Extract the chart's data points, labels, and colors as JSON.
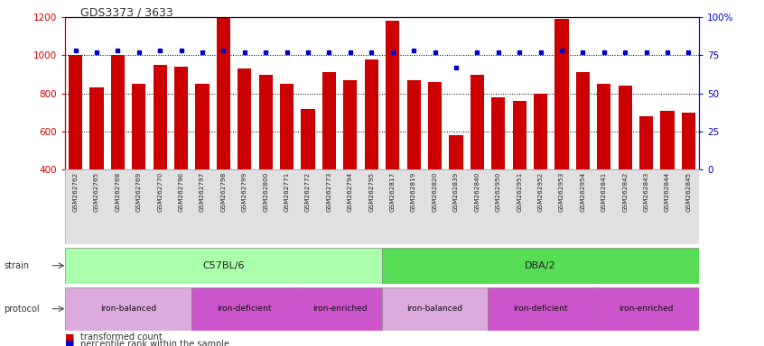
{
  "title": "GDS3373 / 3633",
  "samples": [
    "GSM262762",
    "GSM262765",
    "GSM262768",
    "GSM262769",
    "GSM262770",
    "GSM262796",
    "GSM262797",
    "GSM262798",
    "GSM262799",
    "GSM262800",
    "GSM262771",
    "GSM262772",
    "GSM262773",
    "GSM262794",
    "GSM262795",
    "GSM262817",
    "GSM262819",
    "GSM262820",
    "GSM262839",
    "GSM262840",
    "GSM262950",
    "GSM262951",
    "GSM262952",
    "GSM262953",
    "GSM262954",
    "GSM262841",
    "GSM262842",
    "GSM262843",
    "GSM262844",
    "GSM262845"
  ],
  "bar_values": [
    1000,
    830,
    1000,
    850,
    950,
    940,
    850,
    1200,
    930,
    900,
    850,
    720,
    910,
    870,
    980,
    1180,
    870,
    860,
    580,
    900,
    780,
    760,
    800,
    1190,
    910,
    850,
    840,
    680,
    710,
    700
  ],
  "percentile_values": [
    78,
    77,
    78,
    77,
    78,
    78,
    77,
    78,
    77,
    77,
    77,
    77,
    77,
    77,
    77,
    77,
    78,
    77,
    67,
    77,
    77,
    77,
    77,
    78,
    77,
    77,
    77,
    77,
    77,
    77
  ],
  "ylim_left": [
    400,
    1200
  ],
  "ylim_right": [
    0,
    100
  ],
  "yticks_left": [
    400,
    600,
    800,
    1000,
    1200
  ],
  "yticks_right": [
    0,
    25,
    50,
    75,
    100
  ],
  "bar_color": "#cc0000",
  "dot_color": "#0000cc",
  "strain_groups": [
    {
      "label": "C57BL/6",
      "start": 0,
      "end": 15,
      "color": "#aaffaa"
    },
    {
      "label": "DBA/2",
      "start": 15,
      "end": 30,
      "color": "#55dd55"
    }
  ],
  "protocol_groups": [
    {
      "label": "iron-balanced",
      "start": 0,
      "end": 6,
      "color": "#ddaadd"
    },
    {
      "label": "iron-deficient",
      "start": 6,
      "end": 11,
      "color": "#cc55cc"
    },
    {
      "label": "iron-enriched",
      "start": 11,
      "end": 15,
      "color": "#cc55cc"
    },
    {
      "label": "iron-balanced",
      "start": 15,
      "end": 20,
      "color": "#ddaadd"
    },
    {
      "label": "iron-deficient",
      "start": 20,
      "end": 25,
      "color": "#cc55cc"
    },
    {
      "label": "iron-enriched",
      "start": 25,
      "end": 30,
      "color": "#cc55cc"
    }
  ],
  "background_color": "#ffffff",
  "left_axis_color": "#cc0000",
  "right_axis_color": "#0000cc",
  "grid_yticks": [
    600,
    800,
    1000
  ]
}
